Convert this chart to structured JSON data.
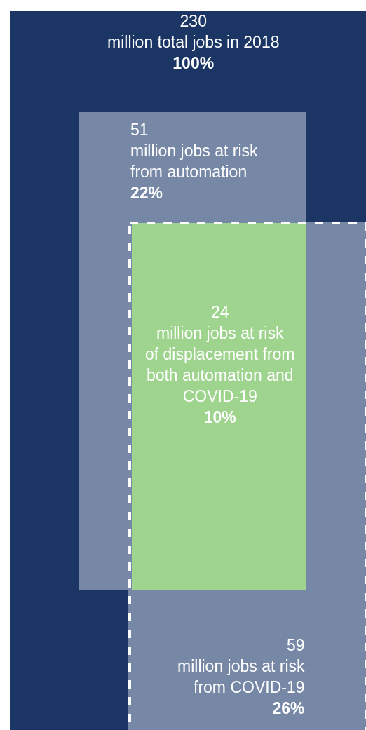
{
  "chart_data": {
    "type": "other",
    "categories": [
      "million total jobs in 2018",
      "million jobs at risk from automation",
      "million jobs at risk of displacement from both automation and COVID-19",
      "million jobs at risk from COVID-19"
    ],
    "values": [
      230,
      51,
      24,
      59
    ],
    "data_labels": true,
    "annotations": [
      "100%",
      "22%",
      "10%",
      "26%"
    ],
    "colors": [
      "#1b3564",
      "#7788a6",
      "#9fd48f",
      "#7788a6"
    ]
  }
}
